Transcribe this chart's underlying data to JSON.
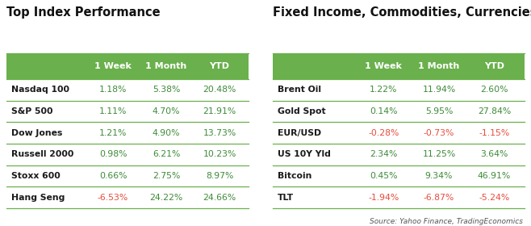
{
  "left_title": "Top Index Performance",
  "right_title": "Fixed Income, Commodities, Currencies",
  "col_headers": [
    "1 Week",
    "1 Month",
    "YTD"
  ],
  "header_bg": "#6ab04c",
  "header_text_color": "#ffffff",
  "row_separator_color": "#6ab04c",
  "positive_color": "#3d8b37",
  "negative_color": "#e74c3c",
  "label_color": "#1a1a1a",
  "bg_color": "#ffffff",
  "source_text": "Source: Yahoo Finance, TradingEconomics",
  "left_rows": [
    {
      "label": "Nasdaq 100",
      "values": [
        "1.18%",
        "5.38%",
        "20.48%"
      ],
      "neg": [
        false,
        false,
        false
      ]
    },
    {
      "label": "S&P 500",
      "values": [
        "1.11%",
        "4.70%",
        "21.91%"
      ],
      "neg": [
        false,
        false,
        false
      ]
    },
    {
      "label": "Dow Jones",
      "values": [
        "1.21%",
        "4.90%",
        "13.73%"
      ],
      "neg": [
        false,
        false,
        false
      ]
    },
    {
      "label": "Russell 2000",
      "values": [
        "0.98%",
        "6.21%",
        "10.23%"
      ],
      "neg": [
        false,
        false,
        false
      ]
    },
    {
      "label": "Stoxx 600",
      "values": [
        "0.66%",
        "2.75%",
        "8.97%"
      ],
      "neg": [
        false,
        false,
        false
      ]
    },
    {
      "label": "Hang Seng",
      "values": [
        "-6.53%",
        "24.22%",
        "24.66%"
      ],
      "neg": [
        true,
        false,
        false
      ]
    }
  ],
  "right_rows": [
    {
      "label": "Brent Oil",
      "values": [
        "1.22%",
        "11.94%",
        "2.60%"
      ],
      "neg": [
        false,
        false,
        false
      ]
    },
    {
      "label": "Gold Spot",
      "values": [
        "0.14%",
        "5.95%",
        "27.84%"
      ],
      "neg": [
        false,
        false,
        false
      ]
    },
    {
      "label": "EUR/USD",
      "values": [
        "-0.28%",
        "-0.73%",
        "-1.15%"
      ],
      "neg": [
        true,
        true,
        true
      ]
    },
    {
      "label": "US 10Y Yld",
      "values": [
        "2.34%",
        "11.25%",
        "3.64%"
      ],
      "neg": [
        false,
        false,
        false
      ]
    },
    {
      "label": "Bitcoin",
      "values": [
        "0.45%",
        "9.34%",
        "46.91%"
      ],
      "neg": [
        false,
        false,
        false
      ]
    },
    {
      "label": "TLT",
      "values": [
        "-1.94%",
        "-6.87%",
        "-5.24%"
      ],
      "neg": [
        true,
        true,
        true
      ]
    }
  ],
  "fig_width": 6.58,
  "fig_height": 2.8,
  "dpi": 100
}
